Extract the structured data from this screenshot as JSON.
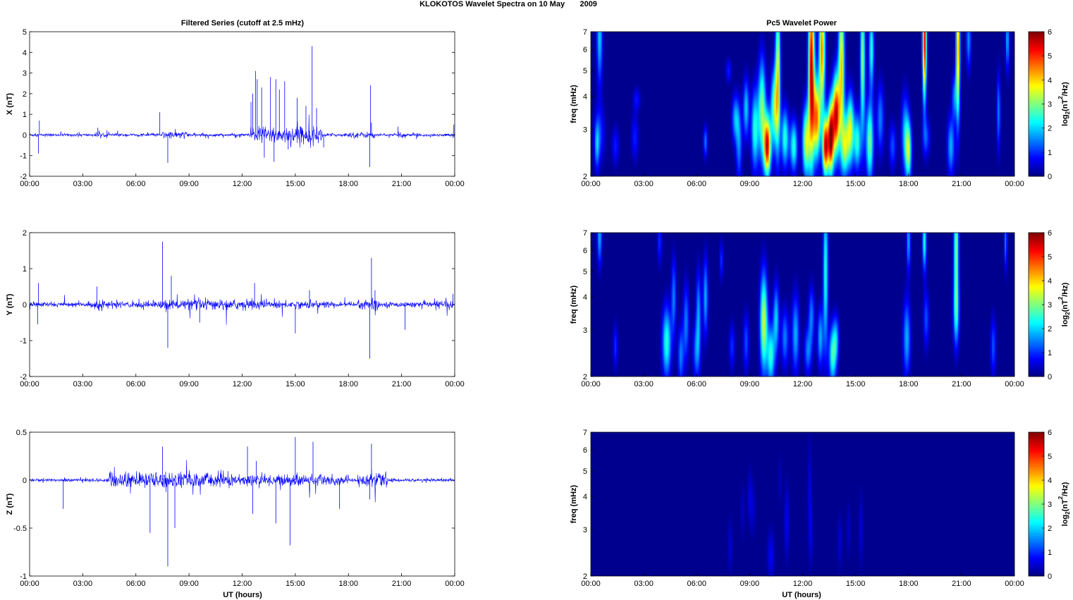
{
  "suptitle": "KLOKOTOS Wavelet Spectra on 10 May       2009",
  "left_title": "Filtered Series (cutoff at 2.5 mHz)",
  "right_title": "Pc5 Wavelet Power",
  "xlabel": "UT (hours)",
  "time_ticks": [
    "00:00",
    "03:00",
    "06:00",
    "09:00",
    "12:00",
    "15:00",
    "18:00",
    "21:00",
    "00:00"
  ],
  "colors": {
    "trace": "#0000ff",
    "axis": "#000000",
    "background": "#00008f"
  },
  "colorbar": {
    "label_main": "log",
    "label_sub": "2",
    "label_paren_open": "(nT",
    "label_sup": "2",
    "label_tail": "/Hz)",
    "ticks": [
      "0",
      "1",
      "2",
      "3",
      "4",
      "5",
      "6"
    ],
    "colormap": "jet"
  },
  "chart_data": [
    {
      "type": "line",
      "component": "X",
      "ylabel": "X (nT)",
      "ylim": [
        -2,
        5
      ],
      "yticks": [
        "-2",
        "-1",
        "0",
        "1",
        "2",
        "3",
        "4",
        "5"
      ],
      "xlim_hours": [
        0,
        24
      ],
      "noise_amp": 0.06,
      "active_windows": [
        [
          3.7,
          4.0,
          0.12
        ],
        [
          7.5,
          9.0,
          0.15
        ],
        [
          12.4,
          16.5,
          0.35
        ],
        [
          17.8,
          19.5,
          0.12
        ],
        [
          20.8,
          21.2,
          0.12
        ],
        [
          23.9,
          24.0,
          0.2
        ]
      ],
      "spikes": [
        [
          0.55,
          0.7
        ],
        [
          0.5,
          -0.9
        ],
        [
          3.85,
          0.35
        ],
        [
          7.35,
          1.1
        ],
        [
          7.8,
          -1.35
        ],
        [
          12.5,
          1.6
        ],
        [
          12.6,
          2.0
        ],
        [
          12.75,
          3.1
        ],
        [
          12.85,
          2.7
        ],
        [
          13.1,
          2.3
        ],
        [
          13.25,
          -1.1
        ],
        [
          13.6,
          2.8
        ],
        [
          13.8,
          -1.3
        ],
        [
          13.9,
          2.7
        ],
        [
          14.1,
          2.2
        ],
        [
          14.4,
          2.6
        ],
        [
          14.6,
          -0.7
        ],
        [
          15.1,
          1.8
        ],
        [
          15.6,
          1.4
        ],
        [
          15.95,
          4.3
        ],
        [
          16.2,
          1.3
        ],
        [
          16.6,
          -0.6
        ],
        [
          19.25,
          2.4
        ],
        [
          19.2,
          -1.55
        ],
        [
          19.3,
          0.6
        ],
        [
          20.8,
          0.4
        ],
        [
          23.95,
          0.5
        ]
      ]
    },
    {
      "type": "line",
      "component": "Y",
      "ylabel": "Y (nT)",
      "ylim": [
        -2,
        2
      ],
      "yticks": [
        "-2",
        "-1",
        "0",
        "1",
        "2"
      ],
      "xlim_hours": [
        0,
        24
      ],
      "noise_amp": 0.06,
      "active_windows": [
        [
          3.7,
          4.2,
          0.12
        ],
        [
          4.2,
          7.0,
          0.08
        ],
        [
          7.2,
          14.0,
          0.12
        ],
        [
          14.0,
          17.0,
          0.09
        ],
        [
          18.5,
          19.7,
          0.15
        ],
        [
          22.8,
          24.0,
          0.1
        ]
      ],
      "spikes": [
        [
          0.5,
          0.6
        ],
        [
          0.45,
          -0.55
        ],
        [
          3.8,
          0.5
        ],
        [
          7.5,
          1.75
        ],
        [
          7.8,
          -1.2
        ],
        [
          8.0,
          0.8
        ],
        [
          9.6,
          -0.5
        ],
        [
          12.7,
          0.6
        ],
        [
          15.0,
          -0.8
        ],
        [
          15.8,
          0.4
        ],
        [
          19.3,
          1.3
        ],
        [
          19.2,
          -1.5
        ],
        [
          19.5,
          0.4
        ],
        [
          21.2,
          -0.7
        ],
        [
          23.9,
          0.3
        ]
      ]
    },
    {
      "type": "line",
      "component": "Z",
      "ylabel": "Z (nT)",
      "ylim": [
        -1,
        0.5
      ],
      "yticks": [
        "-1",
        "-0.5",
        "0",
        "0.5"
      ],
      "xlim_hours": [
        0,
        24
      ],
      "noise_amp": 0.015,
      "active_windows": [
        [
          4.5,
          11.5,
          0.07
        ],
        [
          11.5,
          18.0,
          0.05
        ],
        [
          18.5,
          20.2,
          0.06
        ]
      ],
      "spikes": [
        [
          1.9,
          -0.3
        ],
        [
          6.8,
          -0.55
        ],
        [
          7.5,
          0.35
        ],
        [
          7.8,
          -0.9
        ],
        [
          8.2,
          -0.5
        ],
        [
          12.3,
          0.35
        ],
        [
          12.6,
          -0.35
        ],
        [
          12.8,
          0.2
        ],
        [
          13.9,
          -0.45
        ],
        [
          14.7,
          -0.68
        ],
        [
          15.0,
          0.45
        ],
        [
          16.0,
          0.4
        ],
        [
          17.5,
          -0.3
        ],
        [
          19.3,
          0.38
        ],
        [
          19.2,
          -0.2
        ]
      ]
    },
    {
      "type": "heatmap",
      "component": "X",
      "ylabel": "freq (mHz)",
      "yticks": [
        "2",
        "3",
        "4",
        "5",
        "6",
        "7"
      ],
      "ylim_mHz": [
        2,
        7
      ],
      "yscale": "log",
      "zlim": [
        0,
        6
      ],
      "blobs": [
        [
          0.5,
          6.8,
          2,
          0.12,
          2.5
        ],
        [
          0.35,
          2.6,
          1.4,
          0.1,
          1.2
        ],
        [
          0.5,
          2.9,
          1.0,
          0.22,
          1.5
        ],
        [
          1.4,
          2.6,
          0.9,
          0.15,
          1.0
        ],
        [
          2.5,
          2.8,
          0.9,
          0.15,
          1.2
        ],
        [
          2.6,
          3.9,
          0.8,
          0.15,
          0.6
        ],
        [
          6.5,
          2.7,
          1.5,
          0.08,
          0.8
        ],
        [
          7.8,
          5.0,
          0.9,
          0.12,
          0.6
        ],
        [
          8.2,
          3.3,
          1.8,
          0.15,
          1.2
        ],
        [
          8.4,
          2.6,
          1.5,
          0.12,
          1.8
        ],
        [
          8.8,
          3.6,
          2.0,
          0.12,
          1.5
        ],
        [
          9.3,
          3.0,
          2.5,
          0.15,
          2.0
        ],
        [
          9.7,
          3.6,
          3.0,
          0.15,
          2.5
        ],
        [
          10.0,
          2.6,
          5.5,
          0.14,
          1.5
        ],
        [
          10.4,
          3.6,
          3.0,
          0.15,
          2.0
        ],
        [
          10.6,
          5.0,
          3.5,
          0.1,
          4.0
        ],
        [
          11.0,
          2.8,
          2.5,
          0.15,
          1.5
        ],
        [
          11.5,
          2.6,
          2.5,
          0.15,
          1.3
        ],
        [
          12.2,
          2.7,
          3.5,
          0.15,
          1.8
        ],
        [
          12.5,
          5.0,
          5.8,
          0.12,
          4.5
        ],
        [
          12.8,
          3.3,
          4.5,
          0.15,
          2.0
        ],
        [
          13.1,
          6.0,
          4.5,
          0.12,
          3.0
        ],
        [
          13.3,
          2.6,
          5.5,
          0.12,
          1.5
        ],
        [
          13.6,
          2.8,
          6.0,
          0.12,
          1.8
        ],
        [
          13.9,
          3.4,
          5.5,
          0.14,
          2.0
        ],
        [
          14.2,
          5.2,
          4.0,
          0.12,
          4.0
        ],
        [
          14.4,
          2.6,
          3.0,
          0.14,
          1.5
        ],
        [
          14.7,
          3.0,
          3.5,
          0.15,
          1.8
        ],
        [
          15.1,
          2.7,
          2.5,
          0.14,
          1.4
        ],
        [
          15.4,
          5.5,
          3.0,
          0.1,
          4.0
        ],
        [
          15.8,
          2.7,
          3.0,
          0.15,
          2.0
        ],
        [
          15.9,
          6.0,
          2.5,
          0.1,
          2.0
        ],
        [
          16.4,
          3.3,
          1.5,
          0.15,
          1.8
        ],
        [
          17.1,
          2.6,
          1.2,
          0.15,
          1.2
        ],
        [
          17.8,
          2.9,
          1.8,
          0.15,
          2.0
        ],
        [
          18.0,
          2.5,
          3.0,
          0.12,
          1.5
        ],
        [
          18.9,
          6.5,
          5.5,
          0.08,
          3.0
        ],
        [
          19.0,
          2.8,
          1.2,
          0.15,
          1.0
        ],
        [
          20.4,
          2.6,
          1.8,
          0.15,
          1.5
        ],
        [
          20.8,
          6.0,
          4.5,
          0.08,
          3.5
        ],
        [
          20.6,
          4.0,
          1.5,
          0.1,
          1.2
        ],
        [
          21.4,
          6.5,
          1.6,
          0.1,
          1.5
        ],
        [
          23.1,
          3.5,
          1.5,
          0.08,
          2.0
        ],
        [
          23.6,
          6.5,
          1.8,
          0.08,
          1.5
        ]
      ]
    },
    {
      "type": "heatmap",
      "component": "Y",
      "ylabel": "freq (mHz)",
      "yticks": [
        "2",
        "3",
        "4",
        "5",
        "6",
        "7"
      ],
      "ylim_mHz": [
        2,
        7
      ],
      "yscale": "log",
      "zlim": [
        0,
        6
      ],
      "blobs": [
        [
          0.5,
          6.8,
          1.8,
          0.1,
          1.5
        ],
        [
          1.4,
          2.6,
          1.0,
          0.1,
          1.2
        ],
        [
          3.9,
          6.5,
          1.0,
          0.1,
          1.2
        ],
        [
          4.3,
          2.7,
          2.5,
          0.18,
          1.8
        ],
        [
          4.7,
          4.0,
          1.5,
          0.1,
          2.0
        ],
        [
          5.1,
          2.4,
          1.5,
          0.12,
          1.5
        ],
        [
          5.4,
          3.2,
          1.5,
          0.12,
          2.0
        ],
        [
          6.0,
          2.5,
          1.5,
          0.15,
          1.5
        ],
        [
          6.1,
          3.6,
          1.6,
          0.1,
          2.0
        ],
        [
          6.5,
          4.0,
          1.8,
          0.1,
          2.0
        ],
        [
          7.4,
          5.5,
          1.0,
          0.08,
          1.0
        ],
        [
          8.0,
          2.6,
          1.0,
          0.12,
          1.2
        ],
        [
          8.8,
          2.7,
          1.2,
          0.12,
          1.5
        ],
        [
          9.8,
          3.2,
          3.5,
          0.15,
          2.5
        ],
        [
          10.2,
          2.4,
          2.5,
          0.15,
          1.5
        ],
        [
          10.5,
          3.3,
          2.0,
          0.12,
          1.8
        ],
        [
          11.0,
          2.8,
          1.5,
          0.15,
          1.5
        ],
        [
          11.6,
          2.9,
          1.8,
          0.15,
          2.0
        ],
        [
          12.3,
          2.5,
          1.5,
          0.15,
          1.2
        ],
        [
          12.5,
          3.4,
          1.5,
          0.12,
          1.5
        ],
        [
          13.0,
          2.8,
          1.8,
          0.12,
          1.5
        ],
        [
          13.3,
          5.0,
          2.5,
          0.1,
          4.0
        ],
        [
          13.7,
          2.4,
          2.5,
          0.15,
          1.5
        ],
        [
          13.9,
          2.8,
          1.5,
          0.12,
          1.2
        ],
        [
          17.9,
          2.8,
          1.8,
          0.15,
          2.0
        ],
        [
          18.0,
          6.5,
          1.8,
          0.08,
          1.5
        ],
        [
          18.9,
          6.5,
          2.5,
          0.08,
          1.5
        ],
        [
          19.0,
          3.3,
          1.2,
          0.12,
          1.5
        ],
        [
          20.7,
          6.2,
          3.0,
          0.1,
          3.0
        ],
        [
          20.7,
          3.5,
          2.0,
          0.12,
          1.8
        ],
        [
          22.8,
          2.6,
          1.2,
          0.12,
          1.5
        ],
        [
          23.5,
          6.5,
          1.5,
          0.06,
          1.5
        ]
      ]
    },
    {
      "type": "heatmap",
      "component": "Z",
      "ylabel": "freq (mHz)",
      "yticks": [
        "2",
        "3",
        "4",
        "5",
        "6",
        "7"
      ],
      "ylim_mHz": [
        2,
        7
      ],
      "yscale": "log",
      "zlim": [
        0,
        6
      ],
      "blobs": [
        [
          7.9,
          2.6,
          0.5,
          0.1,
          1.5
        ],
        [
          8.6,
          3.5,
          0.4,
          0.1,
          1.5
        ],
        [
          9.0,
          4.0,
          0.5,
          0.1,
          1.5
        ],
        [
          9.2,
          3.6,
          0.4,
          0.12,
          1.5
        ],
        [
          10.2,
          2.4,
          0.7,
          0.15,
          1.3
        ],
        [
          11.1,
          3.2,
          0.7,
          0.1,
          2.0
        ],
        [
          12.4,
          4.0,
          0.6,
          0.08,
          3.0
        ],
        [
          12.5,
          2.8,
          0.4,
          0.08,
          1.5
        ],
        [
          14.1,
          2.7,
          0.5,
          0.1,
          1.5
        ],
        [
          14.6,
          3.0,
          0.4,
          0.1,
          1.5
        ],
        [
          15.3,
          3.0,
          0.5,
          0.1,
          2.0
        ],
        [
          10.7,
          4.6,
          0.35,
          0.08,
          1.5
        ]
      ]
    }
  ]
}
